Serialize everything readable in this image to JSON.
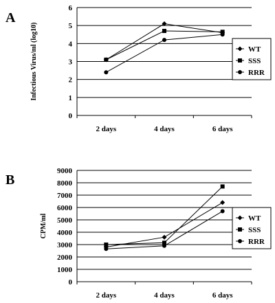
{
  "chart_data": [
    {
      "panel_letter": "A",
      "type": "line",
      "categories": [
        "2 days",
        "4 days",
        "6 days"
      ],
      "ylabel": "Infectious Virus/ml (log10)",
      "ylim": [
        0,
        6
      ],
      "yticks": [
        "0",
        "1",
        "2",
        "3",
        "4",
        "5",
        "6"
      ],
      "grid": true,
      "legend_position": "right",
      "series": [
        {
          "name": "WT",
          "marker": "diamond",
          "values": [
            3.1,
            5.1,
            4.6
          ]
        },
        {
          "name": "SSS",
          "marker": "square",
          "values": [
            3.1,
            4.7,
            4.65
          ]
        },
        {
          "name": "RRR",
          "marker": "circle",
          "values": [
            2.4,
            4.2,
            4.5
          ]
        }
      ]
    },
    {
      "panel_letter": "B",
      "type": "line",
      "categories": [
        "2 days",
        "4 days",
        "6 days"
      ],
      "ylabel": "CPM/ml",
      "ylim": [
        0,
        9000
      ],
      "yticks": [
        "0",
        "1000",
        "2000",
        "3000",
        "4000",
        "5000",
        "6000",
        "7000",
        "8000",
        "9000"
      ],
      "grid": true,
      "legend_position": "right",
      "series": [
        {
          "name": "WT",
          "marker": "diamond",
          "values": [
            2800,
            3600,
            6400
          ]
        },
        {
          "name": "SSS",
          "marker": "square",
          "values": [
            3000,
            3150,
            7700
          ]
        },
        {
          "name": "RRR",
          "marker": "circle",
          "values": [
            2650,
            2900,
            5700
          ]
        }
      ]
    }
  ]
}
